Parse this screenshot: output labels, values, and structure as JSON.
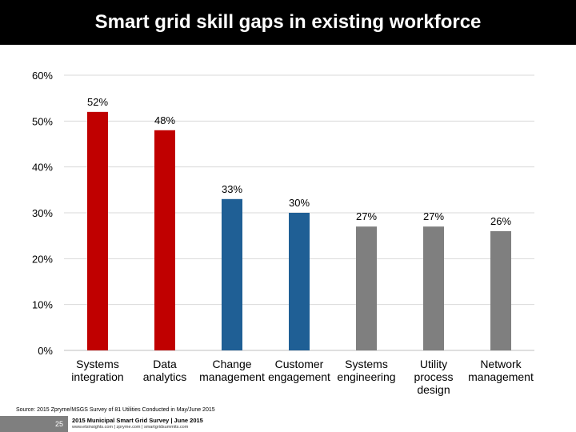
{
  "title": "Smart grid skill gaps in existing workforce",
  "source": "Source: 2015 Zpryme/MSGS Survey of 81 Utilities Conducted in May/June 2015",
  "footer": {
    "page_number": "25",
    "survey_title": "2015 Municipal Smart Grid Survey | June 2015",
    "links": "www.etsinsights.com | zpryme.com | smartgridsummits.com"
  },
  "chart_data": {
    "type": "bar",
    "categories": [
      [
        "Systems",
        "integration"
      ],
      [
        "Data",
        "analytics"
      ],
      [
        "Change",
        "management"
      ],
      [
        "Customer",
        "engagement"
      ],
      [
        "Systems",
        "engineering"
      ],
      [
        "Utility",
        "process",
        "design"
      ],
      [
        "Network",
        "management"
      ]
    ],
    "values": [
      52,
      48,
      33,
      30,
      27,
      27,
      26
    ],
    "data_labels": [
      "52%",
      "48%",
      "33%",
      "30%",
      "27%",
      "27%",
      "26%"
    ],
    "bar_colors": [
      "#c00000",
      "#c00000",
      "#1f5f95",
      "#1f5f95",
      "#7f7f7f",
      "#7f7f7f",
      "#7f7f7f"
    ],
    "ylim": [
      0,
      60
    ],
    "yticks": [
      "0%",
      "10%",
      "20%",
      "30%",
      "40%",
      "50%",
      "60%"
    ],
    "grid": true,
    "xlabel": "",
    "ylabel": ""
  }
}
